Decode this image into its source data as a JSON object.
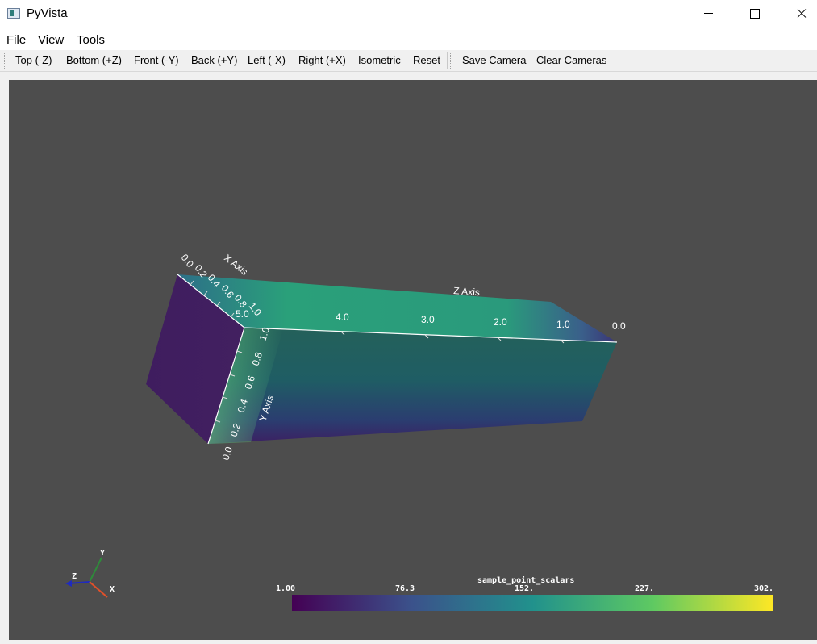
{
  "window": {
    "title": "PyVista"
  },
  "menu": {
    "items": [
      "File",
      "View",
      "Tools"
    ]
  },
  "toolbar": {
    "view_buttons": [
      "Top (-Z)",
      "Bottom (+Z)",
      "Front (-Y)",
      "Back (+Y)",
      "Left (-X)",
      "Right (+X)",
      "Isometric",
      "Reset"
    ],
    "camera_buttons": [
      "Save Camera",
      "Clear Cameras"
    ]
  },
  "scene": {
    "background": "#4d4d4d",
    "axes": {
      "x": {
        "title": "X Axis",
        "ticks": [
          "0.0",
          "0.2",
          "0.4",
          "0.6",
          "0.8",
          "1.0"
        ]
      },
      "y": {
        "title": "Y Axis",
        "ticks": [
          "0.0",
          "0.2",
          "0.4",
          "0.6",
          "0.8",
          "1.0"
        ]
      },
      "z": {
        "title": "Z Axis",
        "ticks": [
          "5.0",
          "4.0",
          "3.0",
          "2.0",
          "1.0",
          "0.0"
        ]
      }
    },
    "orientation_widget": {
      "x_label": "X",
      "y_label": "Y",
      "z_label": "Z"
    },
    "scalar_bar": {
      "title": "sample_point_scalars",
      "tick_labels": [
        "1.00",
        "76.3",
        "152.",
        "227.",
        "302."
      ],
      "colormap": [
        "#440154",
        "#3b528b",
        "#21918c",
        "#5ec962",
        "#fde725"
      ]
    }
  }
}
